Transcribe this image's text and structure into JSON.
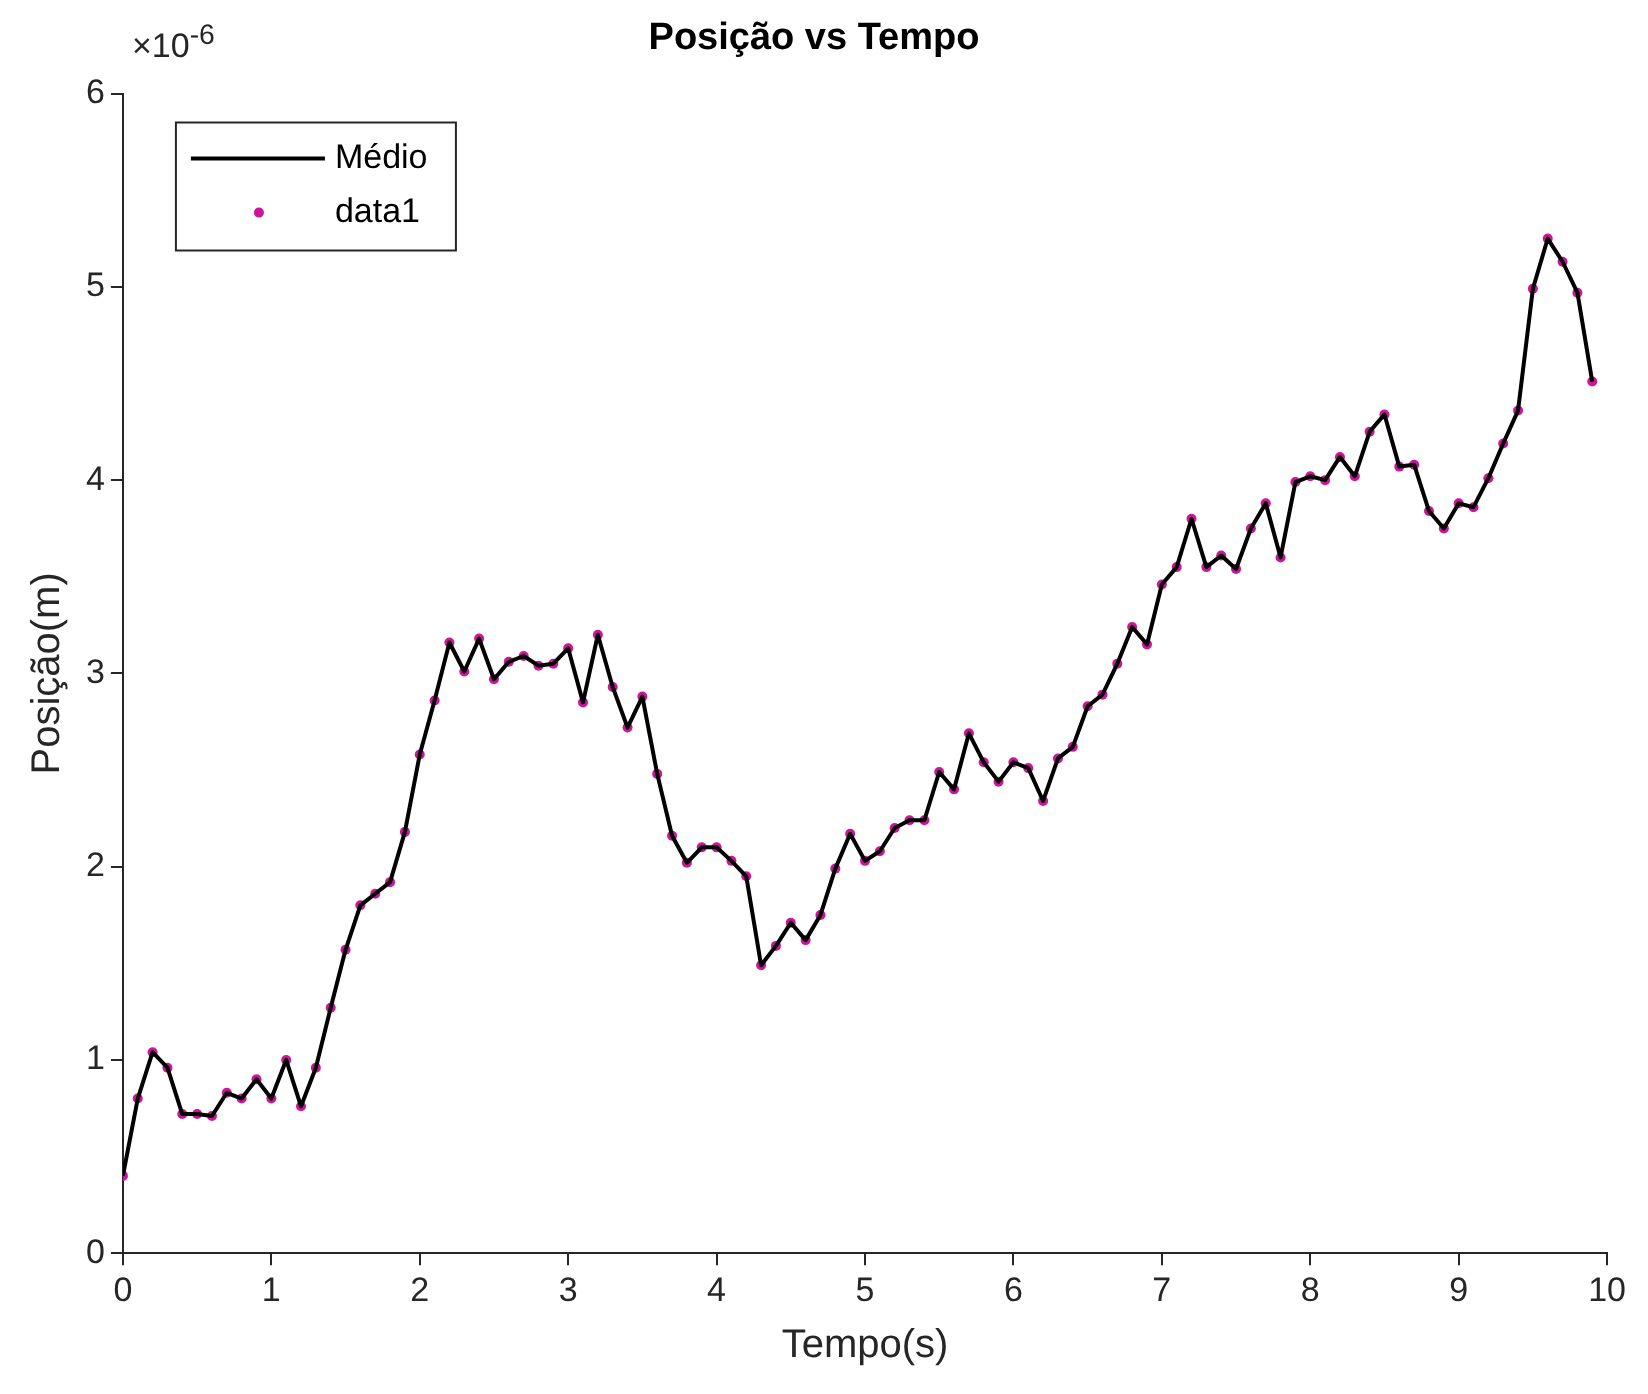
{
  "chart_data": {
    "type": "line",
    "title": "Posição vs Tempo",
    "xlabel": "Tempo(s)",
    "ylabel": "Posição(m)",
    "annotations": [
      "×10$^{-6}$"
    ],
    "x": [
      0,
      0.1,
      0.2,
      0.3,
      0.4,
      0.5,
      0.6,
      0.7,
      0.8,
      0.9,
      1,
      1.1,
      1.2,
      1.3,
      1.4,
      1.5,
      1.6,
      1.7,
      1.8,
      1.9,
      2,
      2.1,
      2.2,
      2.3,
      2.4,
      2.5,
      2.6,
      2.7,
      2.8,
      2.9,
      3,
      3.1,
      3.2,
      3.3,
      3.4,
      3.5,
      3.6,
      3.7,
      3.8,
      3.9,
      4,
      4.1,
      4.2,
      4.3,
      4.4,
      4.5,
      4.6,
      4.7,
      4.8,
      4.9,
      5,
      5.1,
      5.2,
      5.3,
      5.4,
      5.5,
      5.6,
      5.7,
      5.8,
      5.9,
      6,
      6.1,
      6.2,
      6.3,
      6.4,
      6.5,
      6.6,
      6.7,
      6.8,
      6.9,
      7,
      7.1,
      7.2,
      7.3,
      7.4,
      7.5,
      7.6,
      7.7,
      7.8,
      7.9,
      8,
      8.1,
      8.2,
      8.3,
      8.4,
      8.5,
      8.6,
      8.7,
      8.8,
      8.9,
      9,
      9.1,
      9.2,
      9.3,
      9.4,
      9.5,
      9.6,
      9.7,
      9.8,
      9.9
    ],
    "series": [
      {
        "name": "Médio",
        "type": "line",
        "color": "#000000",
        "marker": "none",
        "line_style": "solid",
        "values": [
          0.4,
          0.8,
          1.04,
          0.96,
          0.72,
          0.72,
          0.71,
          0.83,
          0.8,
          0.9,
          0.8,
          1.0,
          0.76,
          0.96,
          1.27,
          1.57,
          1.8,
          1.86,
          1.92,
          2.18,
          2.58,
          2.86,
          3.16,
          3.01,
          3.18,
          2.97,
          3.06,
          3.09,
          3.04,
          3.05,
          3.13,
          2.85,
          3.2,
          2.93,
          2.72,
          2.88,
          2.48,
          2.16,
          2.02,
          2.1,
          2.1,
          2.03,
          1.95,
          1.49,
          1.59,
          1.71,
          1.62,
          1.75,
          1.99,
          2.17,
          2.03,
          2.08,
          2.2,
          2.24,
          2.24,
          2.49,
          2.4,
          2.69,
          2.54,
          2.44,
          2.54,
          2.51,
          2.34,
          2.56,
          2.62,
          2.83,
          2.89,
          3.05,
          3.24,
          3.15,
          3.46,
          3.55,
          3.8,
          3.55,
          3.61,
          3.54,
          3.75,
          3.88,
          3.6,
          3.99,
          4.02,
          4.0,
          4.12,
          4.02,
          4.25,
          4.34,
          4.07,
          4.08,
          3.84,
          3.75,
          3.88,
          3.86,
          4.01,
          4.19,
          4.36,
          4.99,
          5.25,
          5.13,
          4.97,
          4.51
        ]
      },
      {
        "name": "data1",
        "type": "scatter",
        "color": "#cc1599",
        "marker": "circle",
        "values": [
          0.4,
          0.8,
          1.04,
          0.96,
          0.72,
          0.72,
          0.71,
          0.83,
          0.8,
          0.9,
          0.8,
          1.0,
          0.76,
          0.96,
          1.27,
          1.57,
          1.8,
          1.86,
          1.92,
          2.18,
          2.58,
          2.86,
          3.16,
          3.01,
          3.18,
          2.97,
          3.06,
          3.09,
          3.04,
          3.05,
          3.13,
          2.85,
          3.2,
          2.93,
          2.72,
          2.88,
          2.48,
          2.16,
          2.02,
          2.1,
          2.1,
          2.03,
          1.95,
          1.49,
          1.59,
          1.71,
          1.62,
          1.75,
          1.99,
          2.17,
          2.03,
          2.08,
          2.2,
          2.24,
          2.24,
          2.49,
          2.4,
          2.69,
          2.54,
          2.44,
          2.54,
          2.51,
          2.34,
          2.56,
          2.62,
          2.83,
          2.89,
          3.05,
          3.24,
          3.15,
          3.46,
          3.55,
          3.8,
          3.55,
          3.61,
          3.54,
          3.75,
          3.88,
          3.6,
          3.99,
          4.02,
          4.0,
          4.12,
          4.02,
          4.25,
          4.34,
          4.07,
          4.08,
          3.84,
          3.75,
          3.88,
          3.86,
          4.01,
          4.19,
          4.36,
          4.99,
          5.25,
          5.13,
          4.97,
          4.51
        ]
      }
    ],
    "xlim": [
      0,
      10
    ],
    "xticks": [
      0,
      1,
      2,
      3,
      4,
      5,
      6,
      7,
      8,
      9,
      10
    ],
    "ylim": [
      0,
      6
    ],
    "yticks": [
      0,
      1,
      2,
      3,
      4,
      5,
      6
    ],
    "grid": false,
    "legend": "top left"
  }
}
